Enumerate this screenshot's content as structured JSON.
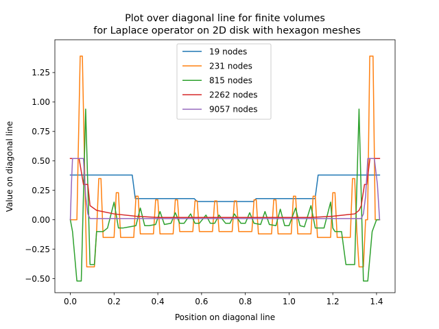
{
  "chart_data": {
    "type": "line",
    "title_lines": [
      "Plot over diagonal line for finite volumes",
      "for Laplace operator on 2D disk with hexagon meshes"
    ],
    "xlabel": "Position on diagonal line",
    "ylabel": "Value on diagonal line",
    "xlim": [
      -0.0707,
      1.4849
    ],
    "ylim": [
      -0.619,
      1.5287
    ],
    "xticks": [
      0.0,
      0.2,
      0.4,
      0.6,
      0.8,
      1.0,
      1.2,
      1.4
    ],
    "xtick_labels": [
      "0.0",
      "0.2",
      "0.4",
      "0.6",
      "0.8",
      "1.0",
      "1.2",
      "1.4"
    ],
    "yticks": [
      -0.5,
      -0.25,
      0.0,
      0.25,
      0.5,
      0.75,
      1.0,
      1.25
    ],
    "ytick_labels": [
      "−0.50",
      "−0.25",
      "0.00",
      "0.25",
      "0.50",
      "0.75",
      "1.00",
      "1.25"
    ],
    "legend_position": "upper-center",
    "grid": false,
    "series": [
      {
        "name": "19 nodes",
        "color": "#1f77b4",
        "x": [
          0.0,
          0.283,
          0.297,
          0.566,
          0.58,
          0.836,
          0.85,
          1.119,
          1.133,
          1.414
        ],
        "y": [
          0.38,
          0.38,
          0.18,
          0.18,
          0.155,
          0.155,
          0.18,
          0.18,
          0.38,
          0.38
        ]
      },
      {
        "name": "231 nodes",
        "color": "#ff7f0e",
        "x": [
          0.0,
          0.02,
          0.03,
          0.045,
          0.055,
          0.07,
          0.075,
          0.11,
          0.12,
          0.13,
          0.14,
          0.15,
          0.16,
          0.2,
          0.21,
          0.22,
          0.23,
          0.24,
          0.25,
          0.29,
          0.3,
          0.31,
          0.32,
          0.33,
          0.34,
          0.38,
          0.39,
          0.4,
          0.41,
          0.42,
          0.43,
          0.47,
          0.48,
          0.49,
          0.5,
          0.51,
          0.52,
          0.56,
          0.57,
          0.58,
          0.59,
          0.6,
          0.61,
          0.65,
          0.66,
          0.67,
          0.68,
          0.69,
          0.7,
          0.74,
          0.75,
          0.76,
          0.77,
          0.78,
          0.79,
          0.83,
          0.84,
          0.85,
          0.86,
          0.87,
          0.88,
          0.92,
          0.93,
          0.94,
          0.95,
          0.96,
          0.97,
          1.01,
          1.02,
          1.03,
          1.04,
          1.05,
          1.06,
          1.1,
          1.11,
          1.12,
          1.13,
          1.14,
          1.15,
          1.19,
          1.2,
          1.21,
          1.22,
          1.23,
          1.24,
          1.28,
          1.29,
          1.3,
          1.31,
          1.32,
          1.33,
          1.34,
          1.35,
          1.359,
          1.369,
          1.384,
          1.394,
          1.414
        ],
        "y": [
          0.0,
          0.0,
          0.0,
          1.39,
          1.39,
          0.0,
          -0.4,
          -0.4,
          -0.1,
          0.35,
          0.35,
          -0.15,
          -0.15,
          -0.15,
          0.23,
          0.23,
          -0.15,
          -0.15,
          -0.15,
          -0.15,
          0.2,
          0.2,
          -0.12,
          -0.12,
          -0.12,
          -0.12,
          0.17,
          0.17,
          -0.12,
          -0.12,
          -0.12,
          -0.12,
          0.17,
          0.17,
          -0.1,
          -0.1,
          -0.1,
          -0.1,
          0.16,
          0.16,
          -0.1,
          -0.1,
          -0.1,
          -0.1,
          0.16,
          0.16,
          -0.1,
          -0.1,
          -0.1,
          -0.1,
          0.16,
          0.16,
          -0.1,
          -0.1,
          -0.1,
          -0.1,
          0.17,
          0.17,
          -0.12,
          -0.12,
          -0.12,
          -0.12,
          0.17,
          0.17,
          -0.12,
          -0.12,
          -0.12,
          -0.12,
          0.2,
          0.2,
          -0.12,
          -0.12,
          -0.12,
          -0.12,
          0.2,
          0.2,
          -0.15,
          -0.15,
          -0.15,
          -0.15,
          0.23,
          0.23,
          -0.15,
          -0.15,
          -0.15,
          -0.15,
          0.35,
          0.35,
          -0.1,
          -0.4,
          -0.4,
          -0.4,
          0.0,
          0.0,
          1.39,
          1.39,
          0.0,
          0.0
        ]
      },
      {
        "name": "815 nodes",
        "color": "#2ca02c",
        "x": [
          0.0,
          0.01,
          0.03,
          0.05,
          0.07,
          0.09,
          0.11,
          0.12,
          0.15,
          0.17,
          0.2,
          0.22,
          0.24,
          0.27,
          0.3,
          0.32,
          0.34,
          0.36,
          0.39,
          0.41,
          0.43,
          0.46,
          0.48,
          0.5,
          0.52,
          0.55,
          0.57,
          0.59,
          0.62,
          0.64,
          0.66,
          0.68,
          0.71,
          0.73,
          0.75,
          0.78,
          0.8,
          0.82,
          0.84,
          0.87,
          0.89,
          0.91,
          0.94,
          0.96,
          0.98,
          1.0,
          1.03,
          1.05,
          1.07,
          1.1,
          1.12,
          1.14,
          1.16,
          1.19,
          1.2,
          1.21,
          1.24,
          1.26,
          1.28,
          1.3,
          1.32,
          1.34,
          1.36,
          1.38,
          1.4,
          1.414
        ],
        "y": [
          0.0,
          -0.1,
          -0.52,
          -0.52,
          0.94,
          -0.38,
          -0.38,
          -0.1,
          -0.1,
          -0.07,
          0.15,
          -0.07,
          -0.07,
          -0.06,
          -0.05,
          0.1,
          -0.05,
          -0.05,
          -0.04,
          0.07,
          -0.04,
          -0.03,
          0.06,
          -0.03,
          -0.03,
          0.05,
          -0.03,
          -0.03,
          0.04,
          -0.03,
          -0.03,
          0.04,
          -0.03,
          -0.03,
          0.05,
          -0.03,
          -0.03,
          0.06,
          -0.03,
          -0.04,
          0.07,
          -0.04,
          -0.05,
          0.09,
          -0.05,
          -0.05,
          0.1,
          -0.05,
          -0.06,
          0.12,
          -0.07,
          -0.07,
          -0.07,
          0.15,
          -0.07,
          -0.1,
          -0.1,
          -0.38,
          -0.38,
          -0.38,
          0.94,
          -0.52,
          -0.52,
          -0.1,
          0.0,
          0.0
        ]
      },
      {
        "name": "2262 nodes",
        "color": "#d62728",
        "x": [
          0.0,
          0.01,
          0.02,
          0.04,
          0.06,
          0.08,
          0.09,
          0.12,
          0.2,
          0.3,
          0.4,
          0.5,
          0.6,
          0.7,
          0.8,
          0.9,
          1.0,
          1.1,
          1.2,
          1.25,
          1.3,
          1.32,
          1.33,
          1.345,
          1.355,
          1.37,
          1.39,
          1.414
        ],
        "y": [
          0.52,
          0.52,
          0.52,
          0.52,
          0.3,
          0.3,
          0.12,
          0.08,
          0.05,
          0.03,
          0.02,
          0.02,
          0.02,
          0.02,
          0.02,
          0.02,
          0.02,
          0.02,
          0.03,
          0.04,
          0.05,
          0.08,
          0.12,
          0.3,
          0.3,
          0.52,
          0.52,
          0.52
        ]
      },
      {
        "name": "9057 nodes",
        "color": "#9467bd",
        "x": [
          0.0,
          0.005,
          0.01,
          0.02,
          0.03,
          0.04,
          0.05,
          0.06,
          0.07,
          0.08,
          0.09,
          0.1,
          0.2,
          0.3,
          0.4,
          0.5,
          0.6,
          0.7,
          0.8,
          0.9,
          1.0,
          1.1,
          1.2,
          1.3,
          1.32,
          1.33,
          1.34,
          1.35,
          1.36,
          1.37,
          1.38,
          1.39,
          1.404,
          1.414
        ],
        "y": [
          0.0,
          0.3,
          0.52,
          0.52,
          0.52,
          0.52,
          0.52,
          0.52,
          0.2,
          0.05,
          0.01,
          0.01,
          0.01,
          0.01,
          0.01,
          0.01,
          0.01,
          0.01,
          0.01,
          0.01,
          0.01,
          0.01,
          0.01,
          0.01,
          0.01,
          0.01,
          0.05,
          0.2,
          0.52,
          0.52,
          0.52,
          0.52,
          0.3,
          0.0
        ]
      }
    ]
  }
}
